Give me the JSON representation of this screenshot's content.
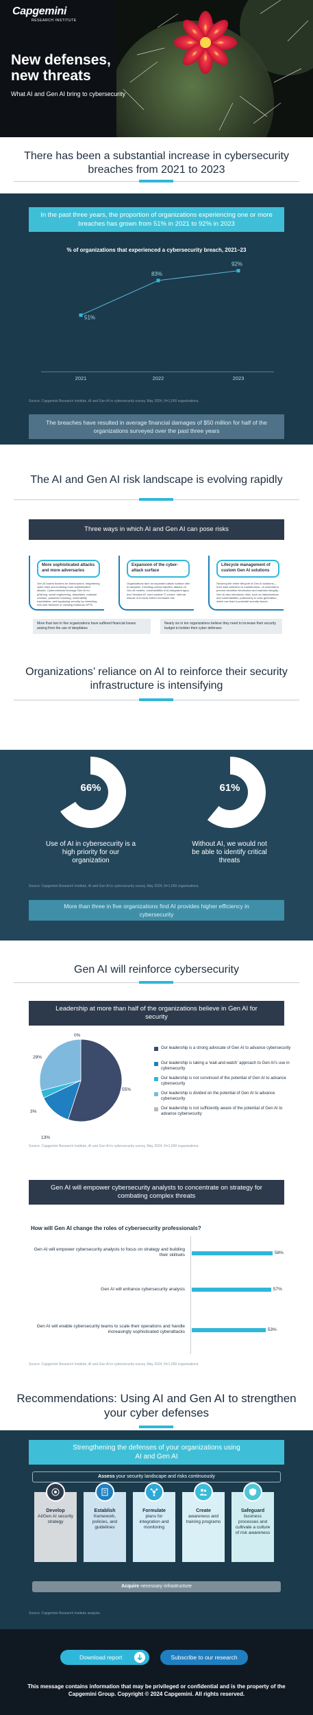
{
  "hero": {
    "brand": "Capgemini",
    "brand_sub": "RESEARCH INSTITUTE",
    "title_line1": "New defenses,",
    "title_line2": "new threats",
    "subtitle": "What AI and Gen AI bring to cybersecurity"
  },
  "section1": {
    "title": "There has been a substantial increase in cybersecurity breaches from 2021 to 2023",
    "highlight": "In the past three years, the proportion of organizations experiencing one or more breaches has grown from 51% in 2021 to 92% in 2023",
    "source": "Source: Capgemini Research Institute, AI and Gen AI in cybersecurity survey, May 2024, N=1,000 organizations.",
    "note": "The breaches have resulted in average financial damages of $50 million for half of the organizations surveyed over the past three years"
  },
  "chart_data": {
    "type": "line",
    "title": "% of organizations that experienced a cybersecurity breach, 2021–23",
    "x": [
      "2021",
      "2022",
      "2023"
    ],
    "values": [
      51,
      83,
      92
    ],
    "value_labels": [
      "51%",
      "83%",
      "92%"
    ],
    "grid": false,
    "colors": {
      "line": "#5ab5d8",
      "marker": "#2fb7da"
    }
  },
  "section2": {
    "title": "The AI and Gen AI risk landscape is evolving rapidly",
    "bar": "Three ways in which AI and Gen AI can pose risks",
    "cards": [
      {
        "head": "More sophisticated attacks and more adversaries",
        "body": "Gen AI lowers barriers for threat actors, heightening cyber risks and enabling more sophisticated attacks. Cybercriminals leverage Gen AI for phishing, social engineering, deepfakes, malware creation, password cracking, vulnerability exploitation, and bypassing security by mimicking real user behavior or creating malicious GPTs."
      },
      {
        "head": "Expansion of the cyber-attack surface",
        "body": "Organizations face an expanded attack surface with AI adoption, including prompt injection attacks on Gen AI models, vulnerabilities in AI-integrated apps, and “shadow AI” used outside IT control. Internal misuse of AI tools further increases risk."
      },
      {
        "head": "Lifecycle management of custom Gen AI solutions",
        "body": "Securing the entire lifecycle of Gen AI solutions—from data collection to maintenance—is essential to prevent sensitive information and maintain integrity. Gen AI also introduces risks, such as hallucinations and vulnerabilities, particularly in code generation, which can lead to potential security issues."
      }
    ],
    "notes": [
      "More than two in five organizations have suffered financial losses arising from the use of deepfakes",
      "Nearly six in ten organizations believe they need to increase their security budget to bolster their cyber defenses"
    ]
  },
  "section3": {
    "title": "Organizations’ reliance on AI to reinforce their security infrastructure is intensifying",
    "stats": [
      {
        "value": 66,
        "pct": "66%",
        "label": "Use of AI in cybersecurity is a high priority for our organization"
      },
      {
        "value": 61,
        "pct": "61%",
        "label": "Without AI, we would not be able to identify critical threats"
      }
    ],
    "source": "Source: Capgemini Research Institute, AI and Gen AI in cybersecurity survey, May 2024, N=1,000 organizations.",
    "note": "More than three in five organizations find AI provides higher efficiency in cybersecurity"
  },
  "section4": {
    "title": "Gen AI will reinforce cybersecurity",
    "bar": "Leadership at more than half of the organizations believe in Gen AI for security",
    "pie": [
      {
        "pct": "55%",
        "value": 55,
        "color": "#3c4a6b",
        "label": "Our leadership is a strong advocate of Gen AI to advance cybersecurity"
      },
      {
        "pct": "13%",
        "value": 13,
        "color": "#1f7fc0",
        "label": "Our leadership is taking a ‘wait-and-watch’ approach to Gen AI’s use in cybersecurity"
      },
      {
        "pct": "3%",
        "value": 3,
        "color": "#2fb7da",
        "label": "Our leadership is not convinced of the potential of Gen AI to advance cybersecurity"
      },
      {
        "pct": "29%",
        "value": 29,
        "color": "#7fb9de",
        "label": "Our leadership is divided on the potential of Gen AI to advance cybersecurity"
      },
      {
        "pct": "0%",
        "value": 0,
        "color": "#b8bcc2",
        "label": "Our leadership is not sufficiently aware of the potential of Gen AI to advance cybersecurity"
      }
    ],
    "source": "Source: Capgemini Research Institute, AI and Gen AI in cybersecurity survey, May 2024, N=1,000 organizations."
  },
  "section5": {
    "bar": "Gen AI will empower cybersecurity analysts to concentrate on strategy for combating complex threats",
    "question": "How will Gen AI change the roles of cybersecurity professionals?",
    "bars": [
      {
        "label": "Gen AI will empower cybersecurity analysts to focus on strategy and building their skillsets",
        "value": 58,
        "pct": "58%"
      },
      {
        "label": "Gen AI will enhance cybersecurity analysis",
        "value": 57,
        "pct": "57%"
      },
      {
        "label": "Gen AI will enable cybersecurity teams to scale their operations and handle increasingly sophisticated cyberattacks",
        "value": 53,
        "pct": "53%"
      }
    ],
    "source": "Source: Capgemini Research Institute, AI and Gen AI in cybersecurity survey, May 2024, N=1,000 organizations."
  },
  "section6": {
    "title": "Recommendations: Using AI and Gen AI to strengthen your cyber defenses",
    "highlight": "Strengthening the defenses of your organizations using AI and Gen AI",
    "assess_bold": "Assess",
    "assess_rest": " your security landscape and risks continuously",
    "steps": [
      {
        "bold": "Develop",
        "rest": "AI/Gen AI security strategy",
        "icon": "target-icon"
      },
      {
        "bold": "Establish",
        "rest": "framework, policies, and guidelines",
        "icon": "document-icon"
      },
      {
        "bold": "Formulate",
        "rest": "plans for integration and monitoring",
        "icon": "network-icon"
      },
      {
        "bold": "Create",
        "rest": "awareness and training programs",
        "icon": "people-icon"
      },
      {
        "bold": "Safeguard",
        "rest": "business processes and cultivate a culture of risk awareness",
        "icon": "shield-icon"
      }
    ],
    "acquire_bold": "Acquire",
    "acquire_rest": " necessary infrastructure",
    "source": "Source: Capgemini Research Institute analysis."
  },
  "footer": {
    "download": "Download report",
    "subscribe": "Subscribe to our research",
    "note": "This message contains information that may be privileged or confidential and is the property of the Capgemini Group. Copyright © 2024 Capgemini. All rights reserved."
  }
}
